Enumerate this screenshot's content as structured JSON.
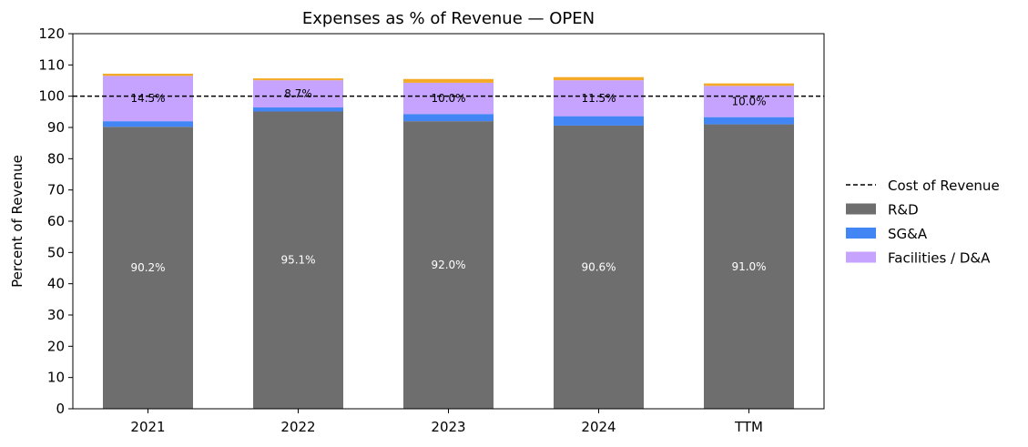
{
  "chart_data": {
    "type": "bar",
    "stacked": true,
    "title": "Expenses as % of Revenue — OPEN",
    "xlabel": "",
    "ylabel": "Percent of Revenue",
    "categories": [
      "2021",
      "2022",
      "2023",
      "2024",
      "TTM"
    ],
    "ylim": [
      0,
      120
    ],
    "yticks": [
      0,
      10,
      20,
      30,
      40,
      50,
      60,
      70,
      80,
      90,
      100,
      110,
      120
    ],
    "grid": false,
    "legend_position": "right",
    "reference_line": {
      "name": "Cost of Revenue",
      "value": 100,
      "style": "dashed",
      "color": "#000000"
    },
    "series": [
      {
        "name": "R&D",
        "color": "#6e6e6e",
        "values": [
          90.2,
          95.1,
          92.0,
          90.6,
          91.0
        ],
        "labels": [
          "90.2%",
          "95.1%",
          "92.0%",
          "90.6%",
          "91.0%"
        ],
        "label_color": "#ffffff"
      },
      {
        "name": "SG&A",
        "color": "#4285f4",
        "values": [
          1.8,
          1.3,
          2.3,
          3.0,
          2.3
        ],
        "labels": [],
        "label_color": "#000000"
      },
      {
        "name": "Facilities / D&A",
        "color": "#c5a3ff",
        "values": [
          14.5,
          8.7,
          10.0,
          11.5,
          10.0
        ],
        "labels": [
          "14.5%",
          "8.7%",
          "10.0%",
          "11.5%",
          "10.0%"
        ],
        "label_color": "#000000"
      },
      {
        "name": "",
        "color": "#f4a927",
        "values": [
          0.7,
          0.6,
          1.2,
          1.0,
          0.8
        ],
        "labels": [],
        "label_color": "#000000"
      }
    ],
    "legend": [
      "Cost of Revenue",
      "R&D",
      "SG&A",
      "Facilities / D&A"
    ]
  }
}
